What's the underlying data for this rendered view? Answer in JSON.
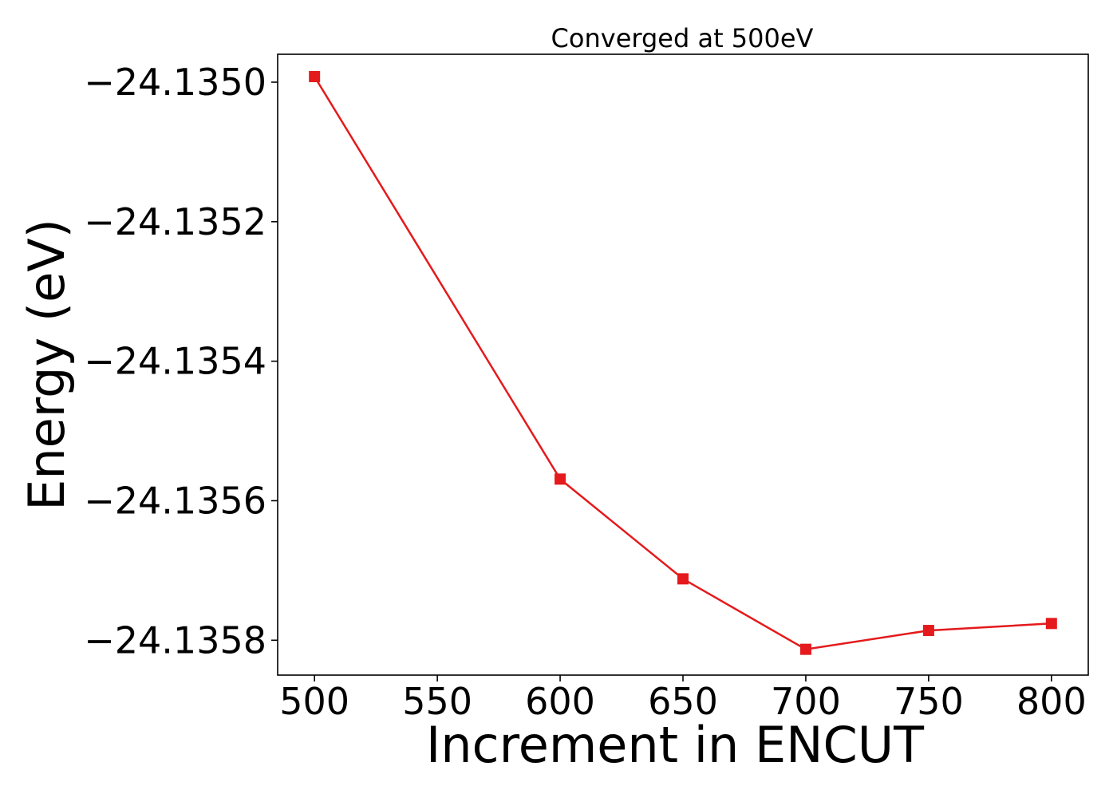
{
  "chart_data": {
    "type": "line",
    "title": "Converged at 500eV",
    "xlabel": "Increment in ENCUT",
    "ylabel": "Energy (eV)",
    "xlim": [
      485,
      815
    ],
    "ylim": [
      -24.13585,
      -24.13496
    ],
    "xticks": [
      500,
      550,
      600,
      650,
      700,
      750,
      800
    ],
    "xtick_labels": [
      "500",
      "550",
      "600",
      "650",
      "700",
      "750",
      "800"
    ],
    "yticks": [
      -24.135,
      -24.1352,
      -24.1354,
      -24.1356,
      -24.1358
    ],
    "ytick_labels": [
      "−24.1350",
      "−24.1352",
      "−24.1354",
      "−24.1356",
      "−24.1358"
    ],
    "grid": false,
    "legend": "none",
    "series": [
      {
        "color": "#e41a1c",
        "marker": "square",
        "x": [
          500,
          600,
          650,
          700,
          750,
          800
        ],
        "y": [
          -24.134992,
          -24.135569,
          -24.135712,
          -24.135813,
          -24.135786,
          -24.135776
        ]
      }
    ]
  }
}
